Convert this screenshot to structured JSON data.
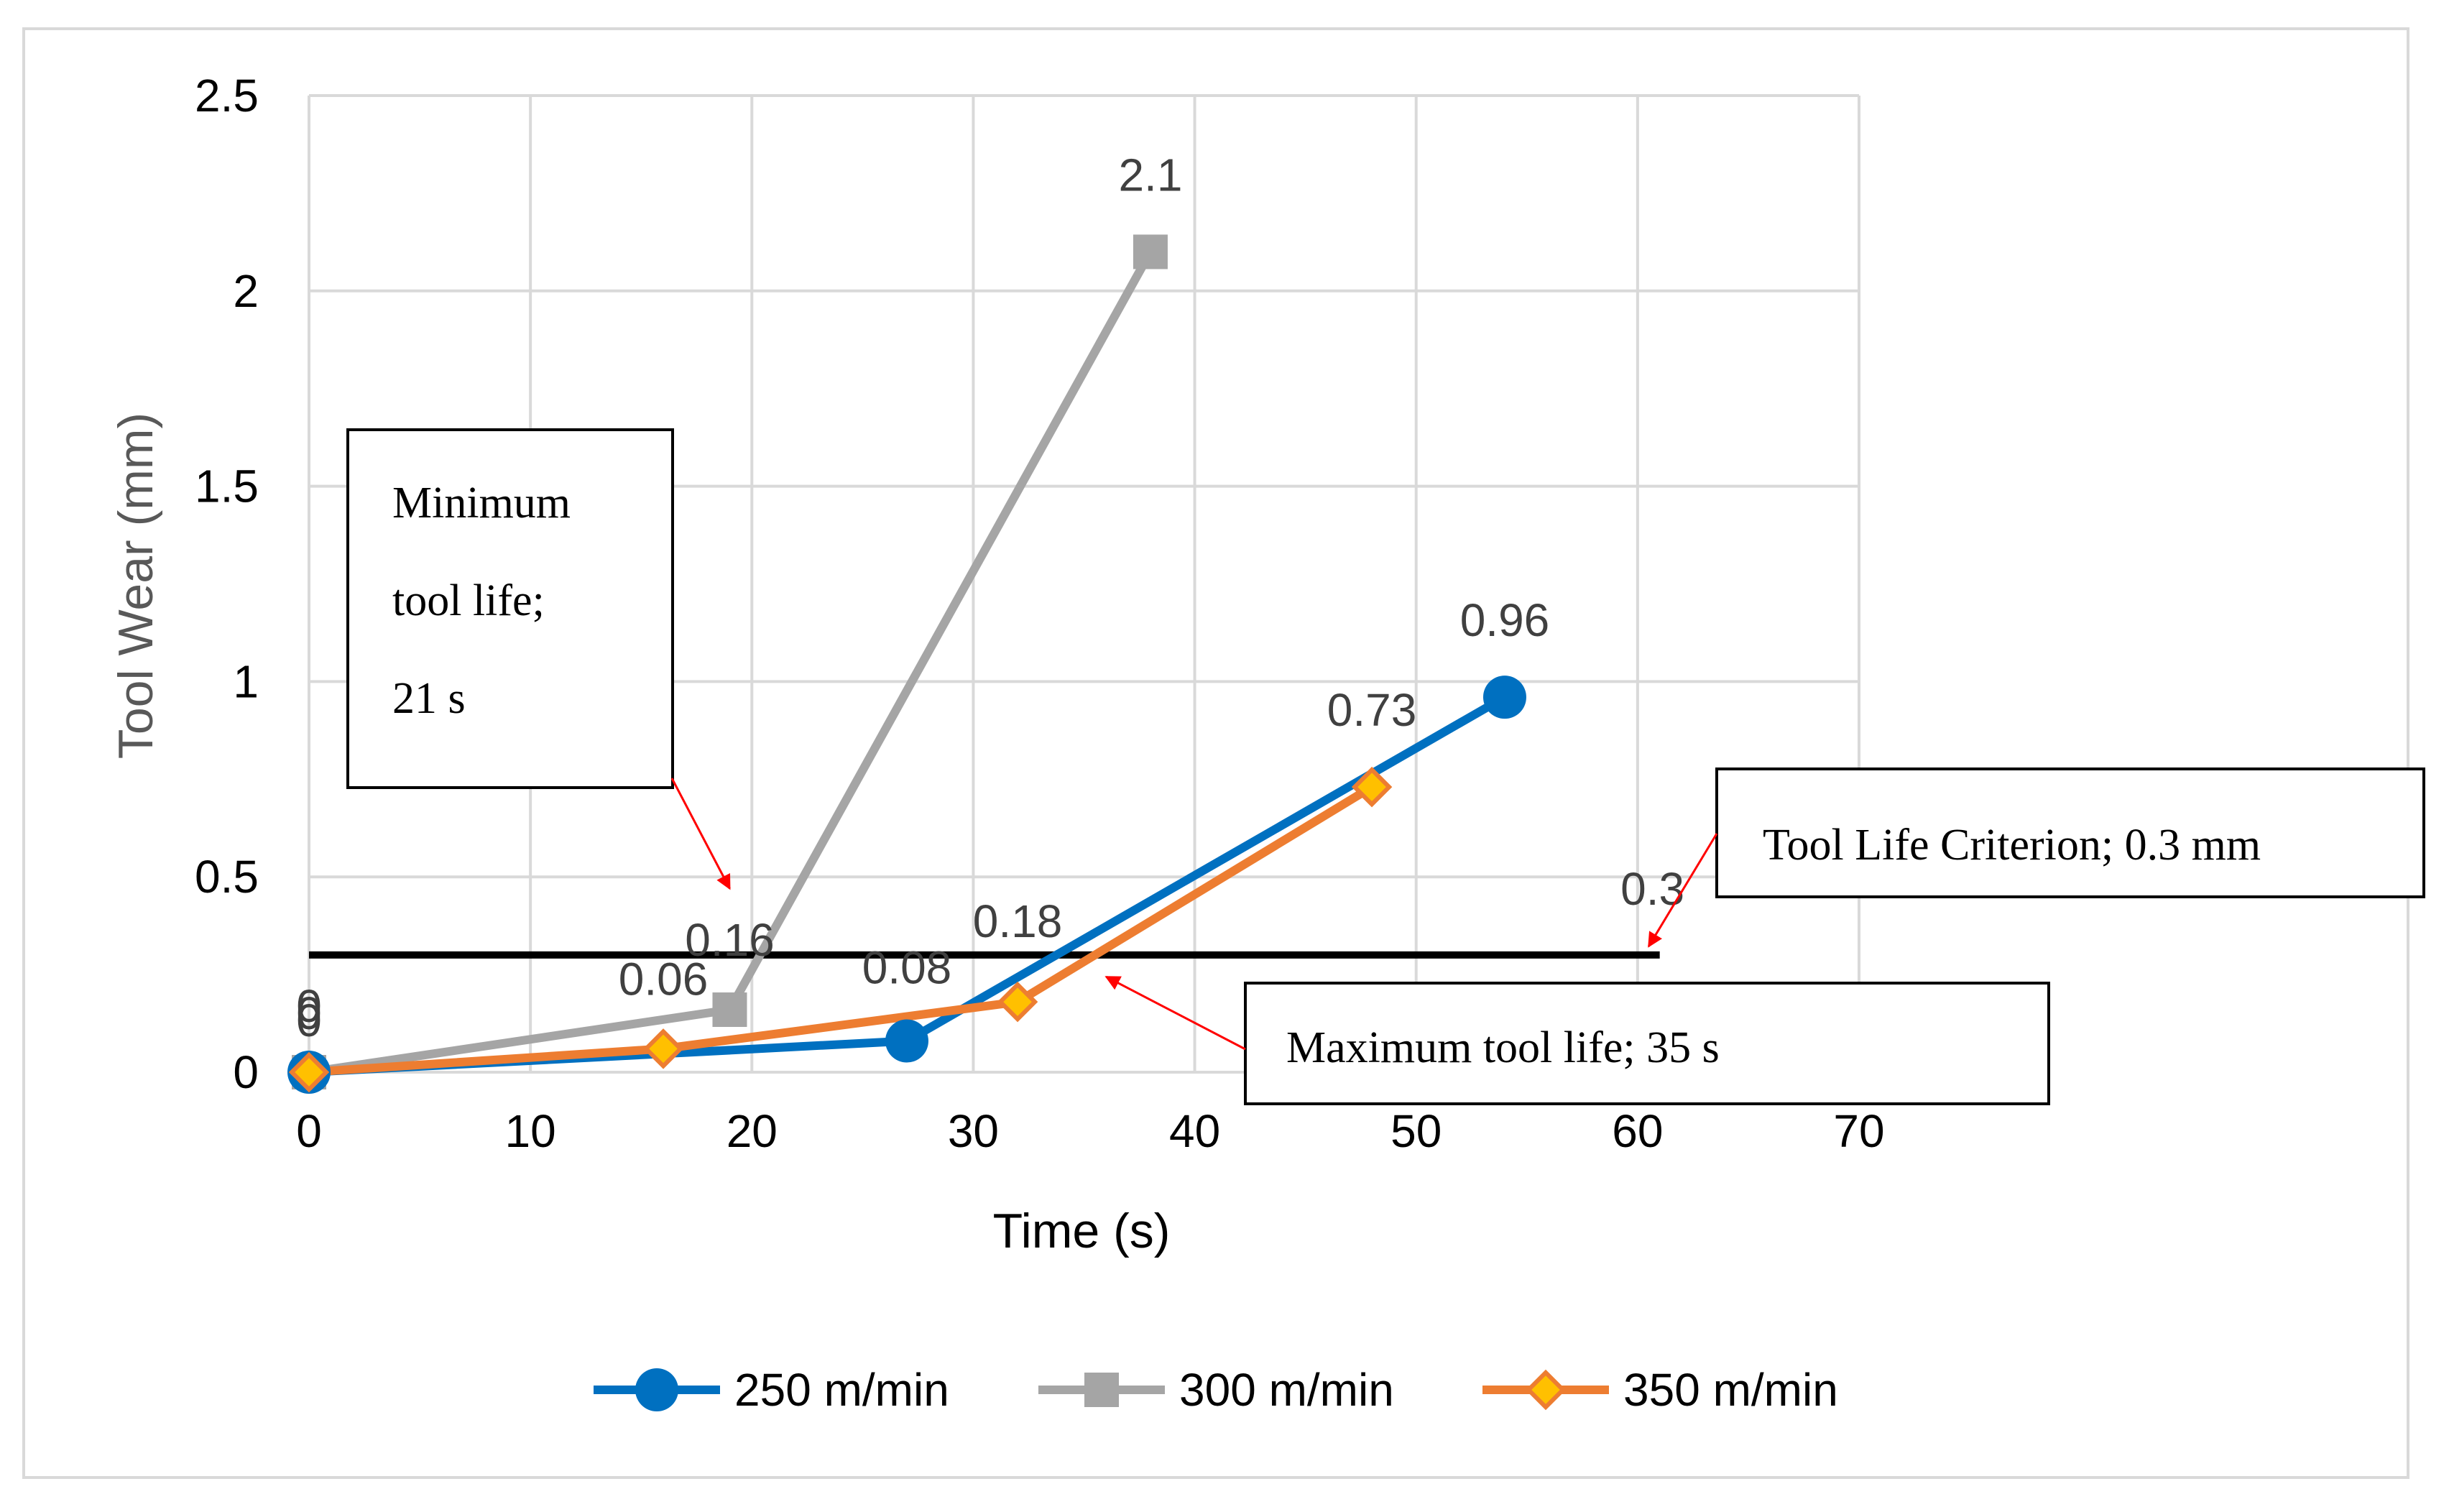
{
  "chart_data": {
    "type": "line",
    "xlabel": "Time (s)",
    "ylabel": "Tool Wear (mm)",
    "xlim": [
      0,
      70
    ],
    "ylim": [
      0,
      2.5
    ],
    "xticks": [
      0,
      10,
      20,
      30,
      40,
      50,
      60,
      70
    ],
    "yticks": [
      0,
      0.5,
      1,
      1.5,
      2,
      2.5
    ],
    "ytick_labels": [
      "0",
      "0.5",
      "1",
      "1.5",
      "2",
      "2.5"
    ],
    "grid": true,
    "legend_position": "bottom",
    "series": [
      {
        "name": "250 m/min",
        "color": "#0070c0",
        "marker": "circle",
        "x": [
          0,
          27,
          54
        ],
        "y": [
          0,
          0.08,
          0.96
        ],
        "labels": [
          "0",
          "0.08",
          "0.96"
        ]
      },
      {
        "name": "300 m/min",
        "color": "#a5a5a5",
        "marker": "square",
        "x": [
          0,
          19,
          38
        ],
        "y": [
          0,
          0.16,
          2.1
        ],
        "labels": [
          "0",
          "0.16",
          "2.1"
        ]
      },
      {
        "name": "350 m/min",
        "color": "#ed7d31",
        "marker_fill": "#ffc000",
        "marker": "diamond",
        "x": [
          0,
          16,
          32,
          48
        ],
        "y": [
          0,
          0.06,
          0.18,
          0.73
        ],
        "labels": [
          "0",
          "0.06",
          "0.18",
          "0.73"
        ]
      }
    ],
    "criterion_line": {
      "y": 0.3,
      "x_range": [
        0,
        61
      ],
      "label": "0.3",
      "color": "#000000"
    },
    "annotations": {
      "minimum": {
        "lines": [
          "Minimum",
          "tool life;",
          "21 s"
        ],
        "arrow_to": [
          19,
          0.47
        ]
      },
      "criterion": {
        "text": "Tool Life Criterion; 0.3 mm",
        "arrow_to": [
          60.5,
          0.3
        ]
      },
      "maximum": {
        "text": "Maximum tool life; 35 s",
        "arrow_to": [
          36,
          0.27
        ]
      }
    }
  }
}
